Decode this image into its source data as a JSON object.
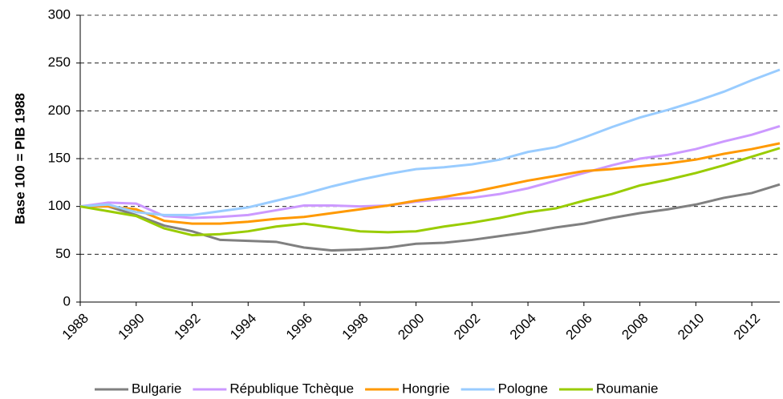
{
  "chart_data": {
    "type": "line",
    "y_label": "Base 100 = PIB 1988",
    "x": [
      1988,
      1989,
      1990,
      1991,
      1992,
      1993,
      1994,
      1995,
      1996,
      1997,
      1998,
      1999,
      2000,
      2001,
      2002,
      2003,
      2004,
      2005,
      2006,
      2007,
      2008,
      2009,
      2010,
      2011,
      2012,
      2013
    ],
    "xlim": [
      1988,
      2013
    ],
    "xticks": [
      1988,
      1990,
      1992,
      1994,
      1996,
      1998,
      2000,
      2002,
      2004,
      2006,
      2008,
      2010,
      2012
    ],
    "ylim": [
      0,
      300
    ],
    "yticks": [
      0,
      50,
      100,
      150,
      200,
      250,
      300
    ],
    "grid": true,
    "legend": "bottom",
    "series": [
      {
        "name": "Bulgarie",
        "color": "#808080",
        "values": [
          100,
          100,
          91,
          80,
          74,
          65,
          64,
          63,
          57,
          54,
          55,
          57,
          61,
          62,
          65,
          69,
          73,
          78,
          82,
          88,
          93,
          97,
          102,
          109,
          114,
          123
        ]
      },
      {
        "name": "République Tchèque",
        "color": "#cc99ff",
        "values": [
          100,
          104,
          103,
          90,
          88,
          89,
          91,
          96,
          101,
          101,
          100,
          101,
          105,
          108,
          109,
          113,
          119,
          127,
          135,
          143,
          150,
          154,
          160,
          168,
          175,
          184
        ]
      },
      {
        "name": "Hongrie",
        "color": "#ff9900",
        "values": [
          100,
          100,
          97,
          85,
          82,
          82,
          84,
          87,
          89,
          93,
          97,
          101,
          106,
          110,
          115,
          121,
          127,
          132,
          137,
          139,
          142,
          145,
          149,
          155,
          160,
          166
        ]
      },
      {
        "name": "Pologne",
        "color": "#99ccff",
        "values": [
          100,
          102,
          94,
          91,
          91,
          95,
          99,
          106,
          113,
          121,
          128,
          134,
          139,
          141,
          144,
          149,
          157,
          162,
          172,
          183,
          193,
          201,
          210,
          220,
          232,
          243
        ]
      },
      {
        "name": "Roumanie",
        "color": "#99cc00",
        "values": [
          100,
          95,
          90,
          77,
          70,
          71,
          74,
          79,
          82,
          78,
          74,
          73,
          74,
          79,
          83,
          88,
          94,
          98,
          106,
          113,
          122,
          128,
          135,
          143,
          152,
          161
        ]
      }
    ]
  }
}
